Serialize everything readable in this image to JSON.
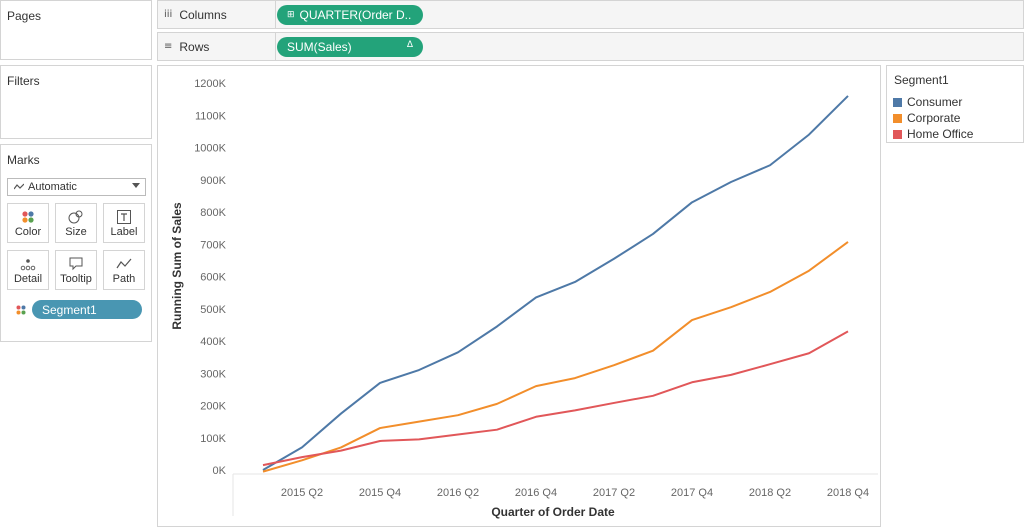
{
  "panels": {
    "pages_title": "Pages",
    "filters_title": "Filters",
    "marks_title": "Marks"
  },
  "shelves": {
    "columns": {
      "label": "Columns",
      "icon": "iii",
      "pill_text": "QUARTER(Order D..",
      "pill_icon": "⊞"
    },
    "rows": {
      "label": "Rows",
      "icon": "≡",
      "pill_text": "SUM(Sales)",
      "pill_delta": "Δ"
    }
  },
  "marks": {
    "mark_type": "Automatic",
    "buttons": [
      "Color",
      "Size",
      "Label",
      "Detail",
      "Tooltip",
      "Path"
    ],
    "segment_pill": "Segment1"
  },
  "legend": {
    "title": "Segment1",
    "items": [
      {
        "label": "Consumer",
        "color": "#4e79a7"
      },
      {
        "label": "Corporate",
        "color": "#f28e2b"
      },
      {
        "label": "Home Office",
        "color": "#e15759"
      }
    ]
  },
  "chart_data": {
    "type": "line",
    "xlabel": "Quarter of Order Date",
    "ylabel": "Running Sum of Sales",
    "x": [
      "2015 Q1",
      "2015 Q2",
      "2015 Q3",
      "2015 Q4",
      "2016 Q1",
      "2016 Q2",
      "2016 Q3",
      "2016 Q4",
      "2017 Q1",
      "2017 Q2",
      "2017 Q3",
      "2017 Q4",
      "2018 Q1",
      "2018 Q2",
      "2018 Q3",
      "2018 Q4"
    ],
    "x_tick_labels": [
      "2015 Q2",
      "2015 Q4",
      "2016 Q2",
      "2016 Q4",
      "2017 Q2",
      "2017 Q4",
      "2018 Q2",
      "2018 Q4"
    ],
    "y_ticks": [
      0,
      100000,
      200000,
      300000,
      400000,
      500000,
      600000,
      700000,
      800000,
      900000,
      1000000,
      1100000,
      1200000
    ],
    "y_tick_labels": [
      "0K",
      "100K",
      "200K",
      "300K",
      "400K",
      "500K",
      "600K",
      "700K",
      "800K",
      "900K",
      "1000K",
      "1100K",
      "1200K"
    ],
    "ylim": [
      0,
      1200000
    ],
    "grid": false,
    "series": [
      {
        "name": "Consumer",
        "color": "#4e79a7",
        "values": [
          0,
          70000,
          175000,
          270000,
          310000,
          365000,
          445000,
          535000,
          583000,
          655000,
          732000,
          830000,
          893000,
          945000,
          1040000,
          1160000
        ]
      },
      {
        "name": "Corporate",
        "color": "#f28e2b",
        "values": [
          -5000,
          30000,
          70000,
          130000,
          150000,
          170000,
          205000,
          260000,
          285000,
          325000,
          370000,
          465000,
          505000,
          552000,
          618000,
          707000
        ]
      },
      {
        "name": "Home Office",
        "color": "#e15759",
        "values": [
          15000,
          40000,
          60000,
          90000,
          95000,
          110000,
          125000,
          165000,
          185000,
          208000,
          230000,
          272000,
          295000,
          328000,
          362000,
          430000
        ]
      }
    ]
  }
}
